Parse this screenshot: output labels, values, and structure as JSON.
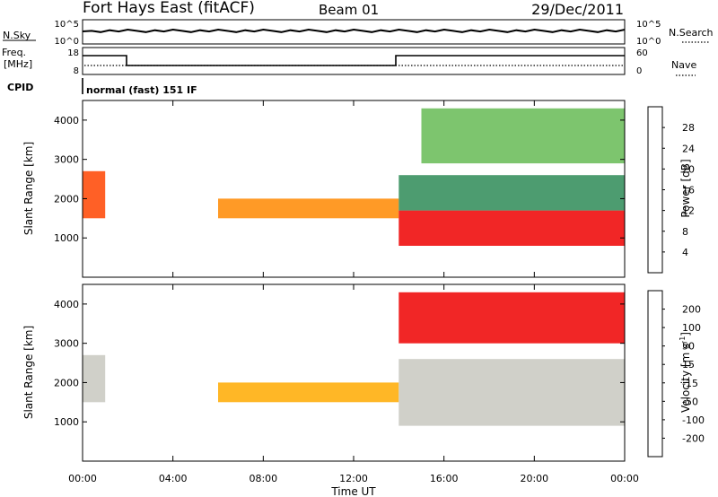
{
  "header": {
    "station": "Fort Hays East (fitACF)",
    "beam": "Beam 01",
    "date": "29/Dec/2011"
  },
  "summary_panels": {
    "nsky": {
      "label": "N.Sky",
      "ticks_left": [
        "10^5",
        "10^0"
      ],
      "right_label": "N.Search",
      "ticks_right": [
        "10^5",
        "10^0"
      ]
    },
    "freq": {
      "label_line1": "Freq.",
      "label_line2": "[MHz]",
      "ticks_left": [
        "18",
        "8"
      ],
      "right_label": "Nave",
      "ticks_right": [
        "60",
        "0"
      ]
    },
    "cpid": {
      "label": "CPID",
      "text": "normal (fast) 151 IF"
    }
  },
  "chart_data": [
    {
      "type": "heatmap",
      "name": "power",
      "ylabel": "Slant Range [km]",
      "yticks": [
        1000,
        2000,
        3000,
        4000
      ],
      "ylim": [
        0,
        4500
      ],
      "xlim": [
        0,
        24
      ],
      "xticks": [
        0,
        4,
        8,
        12,
        16,
        20,
        24
      ],
      "colorbar": {
        "label": "Power [dB]",
        "tick_labels": [
          "28",
          "24",
          "20",
          "16",
          "12",
          "8",
          "4"
        ],
        "colors": [
          "#0000ff",
          "#2b4fb5",
          "#2e8b57",
          "#66bb55",
          "#99cc33",
          "#eecc00",
          "#ff8800",
          "#ff4400",
          "#ee0000"
        ]
      },
      "regions": [
        {
          "t0": 0.0,
          "t1": 1.0,
          "r0": 1500,
          "r1": 2700,
          "color": "#ff4400"
        },
        {
          "t0": 6.0,
          "t1": 14.0,
          "r0": 1500,
          "r1": 2000,
          "color": "#ff8800"
        },
        {
          "t0": 14.0,
          "t1": 24.0,
          "r0": 800,
          "r1": 1700,
          "color": "#ee0000"
        },
        {
          "t0": 14.0,
          "t1": 24.0,
          "r0": 1700,
          "r1": 2600,
          "color": "#2e8b57"
        },
        {
          "t0": 15.0,
          "t1": 24.0,
          "r0": 2900,
          "r1": 4300,
          "color": "#66bb55"
        }
      ]
    },
    {
      "type": "heatmap",
      "name": "velocity",
      "ylabel": "Slant Range [km]",
      "xlabel": "Time UT",
      "yticks": [
        1000,
        2000,
        3000,
        4000
      ],
      "ylim": [
        0,
        4500
      ],
      "xlim": [
        0,
        24
      ],
      "xticks": [
        0,
        4,
        8,
        12,
        16,
        20,
        24
      ],
      "xtick_labels": [
        "00:00",
        "04:00",
        "08:00",
        "12:00",
        "16:00",
        "20:00",
        "00:00"
      ],
      "colorbar": {
        "label": "Velocity [m s",
        "label_sup": "-1",
        "label_end": "]",
        "tick_labels": [
          "200",
          "100",
          "50",
          "15",
          "-15",
          "-50",
          "-100",
          "-200"
        ],
        "colors": [
          "#0000ff",
          "#2b4fb5",
          "#2e8b57",
          "#66cc33",
          "#c8c8c0",
          "#ffaa00",
          "#ff6600",
          "#ee0000"
        ]
      },
      "regions": [
        {
          "t0": 0.0,
          "t1": 1.0,
          "r0": 1500,
          "r1": 2700,
          "color": "#c8c8c0"
        },
        {
          "t0": 6.0,
          "t1": 14.0,
          "r0": 1500,
          "r1": 2000,
          "color": "#ffaa00"
        },
        {
          "t0": 14.0,
          "t1": 24.0,
          "r0": 900,
          "r1": 2600,
          "color": "#c8c8c0"
        },
        {
          "t0": 14.0,
          "t1": 24.0,
          "r0": 3000,
          "r1": 4300,
          "color": "#ee0000"
        }
      ]
    }
  ]
}
